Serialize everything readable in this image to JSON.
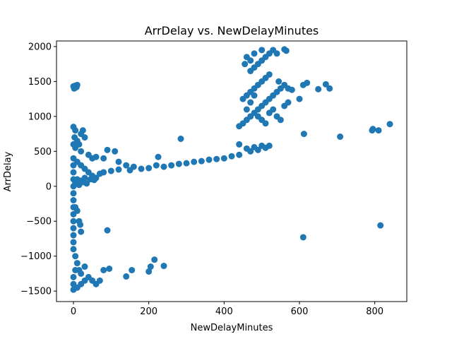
{
  "chart_data": {
    "type": "scatter",
    "title": "ArrDelay vs. NewDelayMinutes",
    "xlabel": "NewDelayMinutes",
    "ylabel": "ArrDelay",
    "xlim": [
      -45,
      885
    ],
    "ylim": [
      -1650,
      2080
    ],
    "x_ticks": [
      0,
      200,
      400,
      600,
      800
    ],
    "y_ticks": [
      -1500,
      -1000,
      -500,
      0,
      500,
      1000,
      1500,
      2000
    ],
    "grid": false,
    "legend": "none",
    "series": [
      {
        "color": "#1f77b4",
        "points": [
          [
            0,
            1430
          ],
          [
            5,
            1440
          ],
          [
            10,
            1450
          ],
          [
            2,
            1400
          ],
          [
            8,
            1420
          ],
          [
            0,
            850
          ],
          [
            5,
            800
          ],
          [
            3,
            700
          ],
          [
            10,
            650
          ],
          [
            20,
            750
          ],
          [
            25,
            800
          ],
          [
            30,
            700
          ],
          [
            0,
            600
          ],
          [
            5,
            550
          ],
          [
            15,
            600
          ],
          [
            20,
            500
          ],
          [
            40,
            450
          ],
          [
            50,
            400
          ],
          [
            60,
            420
          ],
          [
            80,
            400
          ],
          [
            90,
            520
          ],
          [
            110,
            500
          ],
          [
            120,
            350
          ],
          [
            140,
            300
          ],
          [
            160,
            280
          ],
          [
            180,
            250
          ],
          [
            200,
            260
          ],
          [
            220,
            300
          ],
          [
            240,
            280
          ],
          [
            260,
            300
          ],
          [
            280,
            320
          ],
          [
            300,
            330
          ],
          [
            320,
            350
          ],
          [
            340,
            360
          ],
          [
            360,
            380
          ],
          [
            380,
            390
          ],
          [
            400,
            400
          ],
          [
            420,
            430
          ],
          [
            440,
            450
          ],
          [
            285,
            680
          ],
          [
            225,
            420
          ],
          [
            0,
            400
          ],
          [
            0,
            300
          ],
          [
            0,
            200
          ],
          [
            0,
            100
          ],
          [
            0,
            0
          ],
          [
            0,
            -100
          ],
          [
            0,
            -200
          ],
          [
            10,
            350
          ],
          [
            20,
            300
          ],
          [
            30,
            250
          ],
          [
            40,
            200
          ],
          [
            50,
            150
          ],
          [
            60,
            120
          ],
          [
            70,
            180
          ],
          [
            80,
            200
          ],
          [
            100,
            220
          ],
          [
            120,
            240
          ],
          [
            150,
            230
          ],
          [
            10,
            100
          ],
          [
            20,
            80
          ],
          [
            30,
            120
          ],
          [
            5,
            50
          ],
          [
            15,
            20
          ],
          [
            25,
            60
          ],
          [
            35,
            40
          ],
          [
            45,
            100
          ],
          [
            55,
            90
          ],
          [
            0,
            -300
          ],
          [
            0,
            -400
          ],
          [
            0,
            -500
          ],
          [
            0,
            -600
          ],
          [
            0,
            -700
          ],
          [
            0,
            -800
          ],
          [
            5,
            -300
          ],
          [
            10,
            -350
          ],
          [
            15,
            -500
          ],
          [
            20,
            -650
          ],
          [
            18,
            -550
          ],
          [
            90,
            -630
          ],
          [
            0,
            -900
          ],
          [
            5,
            -1000
          ],
          [
            10,
            -1100
          ],
          [
            15,
            -1200
          ],
          [
            0,
            -1300
          ],
          [
            0,
            -1400
          ],
          [
            0,
            -1480
          ],
          [
            10,
            -1450
          ],
          [
            20,
            -1400
          ],
          [
            30,
            -1350
          ],
          [
            40,
            -1300
          ],
          [
            50,
            -1350
          ],
          [
            60,
            -1400
          ],
          [
            70,
            -1350
          ],
          [
            80,
            -1200
          ],
          [
            95,
            -1180
          ],
          [
            140,
            -1290
          ],
          [
            155,
            -1200
          ],
          [
            200,
            -1220
          ],
          [
            205,
            -1150
          ],
          [
            215,
            -1050
          ],
          [
            240,
            -1140
          ],
          [
            5,
            -1200
          ],
          [
            20,
            -1250
          ],
          [
            30,
            -1150
          ],
          [
            440,
            860
          ],
          [
            450,
            900
          ],
          [
            460,
            950
          ],
          [
            470,
            1000
          ],
          [
            480,
            1050
          ],
          [
            490,
            1100
          ],
          [
            500,
            1150
          ],
          [
            510,
            1200
          ],
          [
            520,
            1250
          ],
          [
            530,
            1300
          ],
          [
            540,
            1350
          ],
          [
            450,
            1250
          ],
          [
            460,
            1300
          ],
          [
            470,
            1350
          ],
          [
            480,
            1400
          ],
          [
            490,
            1450
          ],
          [
            500,
            1500
          ],
          [
            510,
            1550
          ],
          [
            520,
            1600
          ],
          [
            470,
            1650
          ],
          [
            480,
            1700
          ],
          [
            490,
            1750
          ],
          [
            500,
            1800
          ],
          [
            510,
            1850
          ],
          [
            520,
            1900
          ],
          [
            530,
            1950
          ],
          [
            540,
            1900
          ],
          [
            460,
            1850
          ],
          [
            470,
            1800
          ],
          [
            455,
            1750
          ],
          [
            480,
            1900
          ],
          [
            500,
            1950
          ],
          [
            545,
            1500
          ],
          [
            550,
            1400
          ],
          [
            560,
            1450
          ],
          [
            570,
            1400
          ],
          [
            580,
            1380
          ],
          [
            560,
            1960
          ],
          [
            565,
            1940
          ],
          [
            460,
            1100
          ],
          [
            470,
            1200
          ],
          [
            480,
            1300
          ],
          [
            490,
            1000
          ],
          [
            500,
            950
          ],
          [
            510,
            900
          ],
          [
            520,
            1050
          ],
          [
            530,
            1100
          ],
          [
            540,
            1000
          ],
          [
            550,
            950
          ],
          [
            560,
            1150
          ],
          [
            570,
            1200
          ],
          [
            440,
            600
          ],
          [
            460,
            540
          ],
          [
            470,
            500
          ],
          [
            480,
            560
          ],
          [
            500,
            580
          ],
          [
            510,
            550
          ],
          [
            520,
            580
          ],
          [
            490,
            520
          ],
          [
            600,
            1250
          ],
          [
            610,
            1450
          ],
          [
            620,
            1480
          ],
          [
            650,
            1390
          ],
          [
            670,
            1460
          ],
          [
            680,
            1400
          ],
          [
            612,
            750
          ],
          [
            708,
            710
          ],
          [
            793,
            800
          ],
          [
            795,
            820
          ],
          [
            810,
            800
          ],
          [
            840,
            890
          ],
          [
            610,
            -730
          ],
          [
            815,
            -560
          ]
        ]
      }
    ]
  }
}
